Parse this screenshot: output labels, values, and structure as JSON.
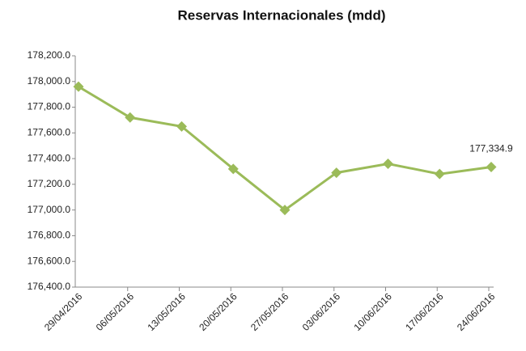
{
  "chart_data": {
    "type": "line",
    "title": "Reservas Internacionales (mdd)",
    "categories": [
      "29/04/2016",
      "06/05/2016",
      "13/05/2016",
      "20/05/2016",
      "27/05/2016",
      "03/06/2016",
      "10/06/2016",
      "17/06/2016",
      "24/06/2016"
    ],
    "series": [
      {
        "name": "Reservas Internacionales",
        "color": "#9bbb59",
        "values": [
          177960,
          177720,
          177650,
          177320,
          177000,
          177290,
          177360,
          177280,
          177334.9
        ],
        "value_labels": [
          null,
          null,
          null,
          null,
          null,
          null,
          null,
          null,
          "177,334.9"
        ]
      }
    ],
    "ylim": [
      176400,
      178200
    ],
    "yticks": [
      {
        "value": 176400,
        "label": "176,400.0"
      },
      {
        "value": 176600,
        "label": "176,600.0"
      },
      {
        "value": 176800,
        "label": "176,800.0"
      },
      {
        "value": 177000,
        "label": "177,000.0"
      },
      {
        "value": 177200,
        "label": "177,200.0"
      },
      {
        "value": 177400,
        "label": "177,400.0"
      },
      {
        "value": 177600,
        "label": "177,600.0"
      },
      {
        "value": 177800,
        "label": "177,800.0"
      },
      {
        "value": 178000,
        "label": "178,000.0"
      },
      {
        "value": 178200,
        "label": "178,200.0"
      }
    ],
    "grid": false,
    "legend": false
  }
}
